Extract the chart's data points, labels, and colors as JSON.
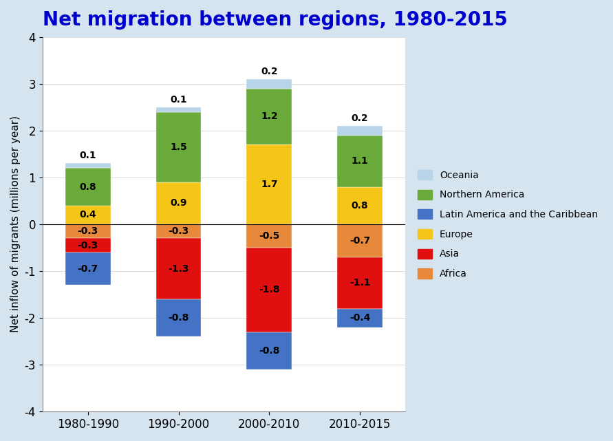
{
  "title": "Net migration between regions, 1980-2015",
  "ylabel": "Net inflow of migrants (millions per year)",
  "categories": [
    "1980-1990",
    "1990-2000",
    "2000-2010",
    "2010-2015"
  ],
  "series": {
    "Oceania": [
      0.1,
      0.1,
      0.2,
      0.2
    ],
    "Northern America": [
      0.8,
      1.5,
      1.2,
      1.1
    ],
    "Europe": [
      0.4,
      0.9,
      1.7,
      0.8
    ],
    "Africa": [
      -0.3,
      -0.3,
      -0.5,
      -0.7
    ],
    "Asia": [
      -0.3,
      -1.3,
      -1.8,
      -1.1
    ],
    "Latin America and the Caribbean": [
      -0.7,
      -0.8,
      -0.8,
      -0.4
    ]
  },
  "colors": {
    "Oceania": "#b8d4e8",
    "Northern America": "#6aaa3a",
    "Europe": "#f5c518",
    "Africa": "#e8883a",
    "Asia": "#e01010",
    "Latin America and the Caribbean": "#4472c4"
  },
  "ylim": [
    -4,
    4
  ],
  "yticks": [
    -4,
    -3,
    -2,
    -1,
    0,
    1,
    2,
    3,
    4
  ],
  "background_color": "#d6e4f0",
  "plot_bg_color": "#ffffff",
  "title_color": "#0000cc",
  "title_fontsize": 20,
  "bar_width": 0.5,
  "pos_order": [
    "Europe",
    "Northern America",
    "Oceania"
  ],
  "neg_order": [
    "Africa",
    "Asia",
    "Latin America and the Caribbean"
  ],
  "legend_order": [
    "Oceania",
    "Northern America",
    "Latin America and the Caribbean",
    "Europe",
    "Asia",
    "Africa"
  ]
}
